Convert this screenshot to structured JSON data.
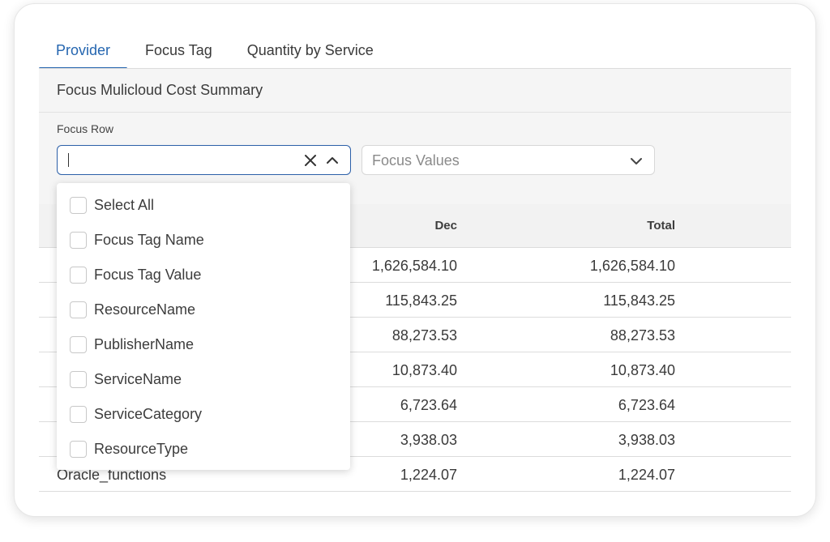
{
  "tabs": [
    {
      "label": "Provider",
      "active": true
    },
    {
      "label": "Focus Tag",
      "active": false
    },
    {
      "label": "Quantity by Service",
      "active": false
    }
  ],
  "panel": {
    "title": "Focus Mulicloud Cost Summary",
    "focus_row_label": "Focus Row",
    "focus_row_value": "",
    "focus_values_placeholder": "Focus Values"
  },
  "table": {
    "columns": {
      "dec": "Dec",
      "total": "Total"
    },
    "rows": [
      {
        "name": "",
        "dec": "1,626,584.10",
        "total": "1,626,584.10"
      },
      {
        "name": "",
        "dec": "115,843.25",
        "total": "115,843.25"
      },
      {
        "name": "",
        "dec": "88,273.53",
        "total": "88,273.53"
      },
      {
        "name": "",
        "dec": "10,873.40",
        "total": "10,873.40"
      },
      {
        "name": "",
        "dec": "6,723.64",
        "total": "6,723.64"
      },
      {
        "name": "",
        "dec": "3,938.03",
        "total": "3,938.03"
      },
      {
        "name": "Oracle_functions",
        "dec": "1,224.07",
        "total": "1,224.07"
      }
    ]
  },
  "menu": {
    "options": [
      {
        "label": "Select All",
        "checked": false
      },
      {
        "label": "Focus Tag Name",
        "checked": false
      },
      {
        "label": "Focus Tag Value",
        "checked": false
      },
      {
        "label": "ResourceName",
        "checked": false
      },
      {
        "label": "PublisherName",
        "checked": false
      },
      {
        "label": "ServiceName",
        "checked": false
      },
      {
        "label": "ServiceCategory",
        "checked": false
      },
      {
        "label": "ResourceType",
        "checked": false
      }
    ]
  },
  "icons": {
    "clear": "close-icon",
    "collapse": "chevron-up-icon",
    "expand": "chevron-down-icon"
  },
  "colors": {
    "accent": "#2566b0",
    "input_border_focus": "#2b5fa8",
    "panel_bg": "#f5f5f5"
  }
}
